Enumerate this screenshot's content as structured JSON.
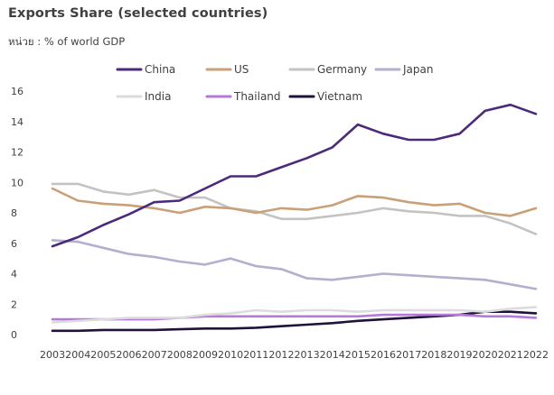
{
  "title": "Exports Share (selected countries)",
  "subtitle": "หน่วย : % of world GDP",
  "chart_data": {
    "type": "line",
    "x": [
      "2003",
      "2004",
      "2005",
      "2006",
      "2007",
      "2008",
      "2009",
      "2010",
      "2011",
      "2012",
      "2013",
      "2014",
      "2015",
      "2016",
      "2017",
      "2018",
      "2019",
      "2020",
      "2021",
      "2022"
    ],
    "ylim": [
      0,
      16
    ],
    "yticks": [
      0,
      2,
      4,
      6,
      8,
      10,
      12,
      14,
      16
    ],
    "grid": false,
    "legend_position": "top",
    "series": [
      {
        "name": "China",
        "color": "#4b2a7b",
        "values": [
          5.8,
          6.4,
          7.2,
          7.9,
          8.7,
          8.8,
          9.6,
          10.4,
          10.4,
          11.0,
          11.6,
          12.3,
          13.8,
          13.2,
          12.8,
          12.8,
          13.2,
          14.7,
          15.1,
          14.5
        ]
      },
      {
        "name": "US",
        "color": "#c9a078",
        "values": [
          9.6,
          8.8,
          8.6,
          8.5,
          8.3,
          8.0,
          8.4,
          8.3,
          8.0,
          8.3,
          8.2,
          8.5,
          9.1,
          9.0,
          8.7,
          8.5,
          8.6,
          8.0,
          7.8,
          8.3
        ]
      },
      {
        "name": "Germany",
        "color": "#c3c3c3",
        "values": [
          9.9,
          9.9,
          9.4,
          9.2,
          9.5,
          9.0,
          9.0,
          8.3,
          8.1,
          7.6,
          7.6,
          7.8,
          8.0,
          8.3,
          8.1,
          8.0,
          7.8,
          7.8,
          7.3,
          6.6
        ]
      },
      {
        "name": "Japan",
        "color": "#b3afcf",
        "values": [
          6.2,
          6.1,
          5.7,
          5.3,
          5.1,
          4.8,
          4.6,
          5.0,
          4.5,
          4.3,
          3.7,
          3.6,
          3.8,
          4.0,
          3.9,
          3.8,
          3.7,
          3.6,
          3.3,
          3.0
        ]
      },
      {
        "name": "India",
        "color": "#dcdcdc",
        "values": [
          0.8,
          0.9,
          1.0,
          1.1,
          1.1,
          1.1,
          1.3,
          1.4,
          1.6,
          1.5,
          1.6,
          1.6,
          1.5,
          1.6,
          1.6,
          1.6,
          1.6,
          1.5,
          1.7,
          1.8
        ]
      },
      {
        "name": "Thailand",
        "color": "#b57ad6",
        "values": [
          1.0,
          1.0,
          1.0,
          1.0,
          1.0,
          1.1,
          1.2,
          1.2,
          1.2,
          1.2,
          1.2,
          1.2,
          1.2,
          1.3,
          1.3,
          1.3,
          1.3,
          1.2,
          1.2,
          1.1
        ]
      },
      {
        "name": "Vietnam",
        "color": "#20123a",
        "values": [
          0.25,
          0.25,
          0.3,
          0.3,
          0.3,
          0.35,
          0.4,
          0.4,
          0.45,
          0.55,
          0.65,
          0.75,
          0.9,
          1.0,
          1.1,
          1.2,
          1.3,
          1.5,
          1.5,
          1.4
        ]
      }
    ]
  }
}
